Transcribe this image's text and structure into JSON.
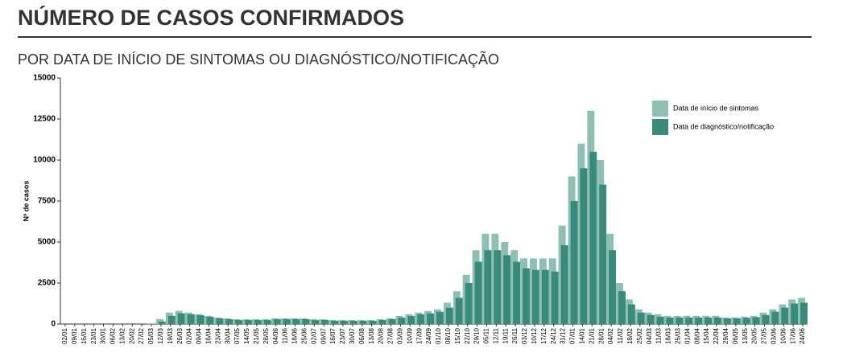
{
  "chart_data": {
    "type": "bar",
    "title": "NÚMERO DE CASOS CONFIRMADOS",
    "subtitle": "POR DATA DE INÍCIO DE SINTOMAS OU DIAGNÓSTICO/NOTIFICAÇÃO",
    "y_label": "Nº de casos",
    "categories": [
      "02/01",
      "09/01",
      "16/01",
      "23/01",
      "30/01",
      "06/02",
      "13/02",
      "20/02",
      "27/02",
      "05/03",
      "12/03",
      "19/03",
      "26/03",
      "02/04",
      "09/04",
      "16/04",
      "23/04",
      "30/04",
      "07/05",
      "14/05",
      "21/05",
      "28/05",
      "04/06",
      "11/06",
      "18/06",
      "25/06",
      "02/07",
      "09/07",
      "16/07",
      "23/07",
      "30/07",
      "06/08",
      "13/08",
      "20/08",
      "27/08",
      "03/09",
      "10/09",
      "17/09",
      "24/09",
      "01/10",
      "08/10",
      "15/10",
      "22/10",
      "29/10",
      "05/11",
      "12/11",
      "19/11",
      "26/11",
      "03/12",
      "10/12",
      "17/12",
      "24/12",
      "31/12",
      "07/01",
      "14/01",
      "21/01",
      "28/01",
      "04/02",
      "11/02",
      "18/02",
      "25/02",
      "04/03",
      "11/03",
      "18/03",
      "25/03",
      "01/04",
      "08/04",
      "15/04",
      "22/04",
      "29/04",
      "06/05",
      "13/05",
      "20/05",
      "27/05",
      "03/06",
      "10/06",
      "17/06",
      "24/06"
    ],
    "series": [
      {
        "name": "Data de início de sintomas",
        "color": "#8fbfb3",
        "values": [
          0,
          0,
          0,
          0,
          0,
          0,
          0,
          0,
          0,
          20,
          300,
          700,
          800,
          700,
          600,
          500,
          400,
          350,
          300,
          300,
          300,
          300,
          350,
          350,
          350,
          350,
          300,
          300,
          250,
          250,
          250,
          250,
          250,
          300,
          350,
          500,
          600,
          700,
          800,
          900,
          1300,
          2000,
          3000,
          4500,
          5500,
          5500,
          5000,
          4500,
          4000,
          4000,
          4000,
          4000,
          6000,
          9000,
          11000,
          13000,
          10000,
          5500,
          2500,
          1500,
          900,
          700,
          600,
          500,
          500,
          500,
          500,
          500,
          500,
          400,
          400,
          450,
          500,
          700,
          900,
          1200,
          1500,
          1600
        ]
      },
      {
        "name": "Data de diagnóstico/notificação",
        "color": "#3a8a7c",
        "values": [
          0,
          0,
          0,
          0,
          0,
          0,
          0,
          0,
          0,
          10,
          150,
          500,
          650,
          600,
          550,
          450,
          350,
          300,
          250,
          250,
          250,
          250,
          300,
          300,
          300,
          300,
          250,
          250,
          200,
          200,
          200,
          200,
          200,
          250,
          300,
          400,
          500,
          600,
          650,
          750,
          1000,
          1600,
          2500,
          3800,
          4500,
          4500,
          4200,
          3800,
          3400,
          3300,
          3300,
          3200,
          4800,
          7500,
          9500,
          10500,
          8500,
          4500,
          2000,
          1200,
          700,
          550,
          450,
          400,
          400,
          400,
          400,
          400,
          400,
          350,
          350,
          380,
          420,
          550,
          750,
          1000,
          1250,
          1300
        ]
      }
    ],
    "ylim": [
      0,
      15000
    ],
    "yticks": [
      0,
      2500,
      5000,
      7500,
      10000,
      12500,
      15000
    ],
    "legend": "top-right"
  }
}
